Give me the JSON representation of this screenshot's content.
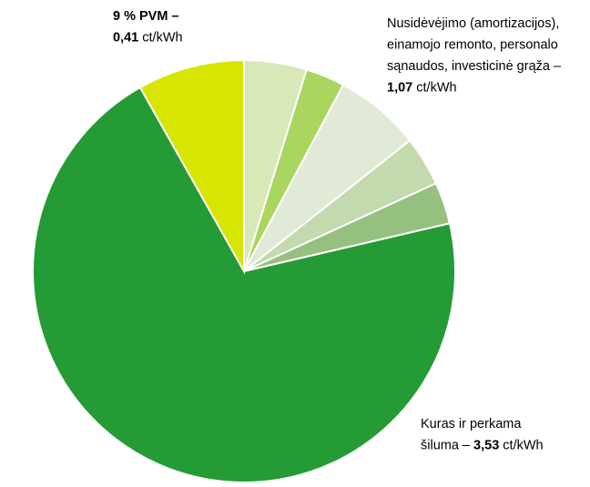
{
  "chart_data": {
    "type": "pie",
    "values": [
      0.24,
      0.15,
      0.33,
      0.19,
      0.16,
      3.53,
      0.41
    ],
    "colors": [
      "#d8e8b7",
      "#a9d65e",
      "#e0ead6",
      "#c3d9ae",
      "#95c07f",
      "#259b36",
      "#d6e600"
    ],
    "start_angle": 0,
    "clockwise": true,
    "annotations": [
      {
        "lines": [
          [
            {
              "text": "9 % PVM –",
              "bold": true
            }
          ],
          [
            {
              "text": "0,41",
              "bold": true
            },
            {
              "text": " ct/kWh",
              "bold": false
            }
          ]
        ]
      },
      {
        "lines": [
          [
            {
              "text": "Nusidėvėjimo (amortizacijos),",
              "bold": false
            }
          ],
          [
            {
              "text": "einamojo remonto, personalo",
              "bold": false
            }
          ],
          [
            {
              "text": "sąnaudos, investicinė grąža –",
              "bold": false
            }
          ],
          [
            {
              "text": "1,07",
              "bold": true
            },
            {
              "text": " ct/kWh",
              "bold": false
            }
          ]
        ]
      },
      {
        "lines": [
          [
            {
              "text": "Kuras ir perkama",
              "bold": false
            }
          ],
          [
            {
              "text": "šiluma – ",
              "bold": false
            },
            {
              "text": "3,53",
              "bold": true
            },
            {
              "text": " ct/kWh",
              "bold": false
            }
          ]
        ]
      }
    ]
  }
}
